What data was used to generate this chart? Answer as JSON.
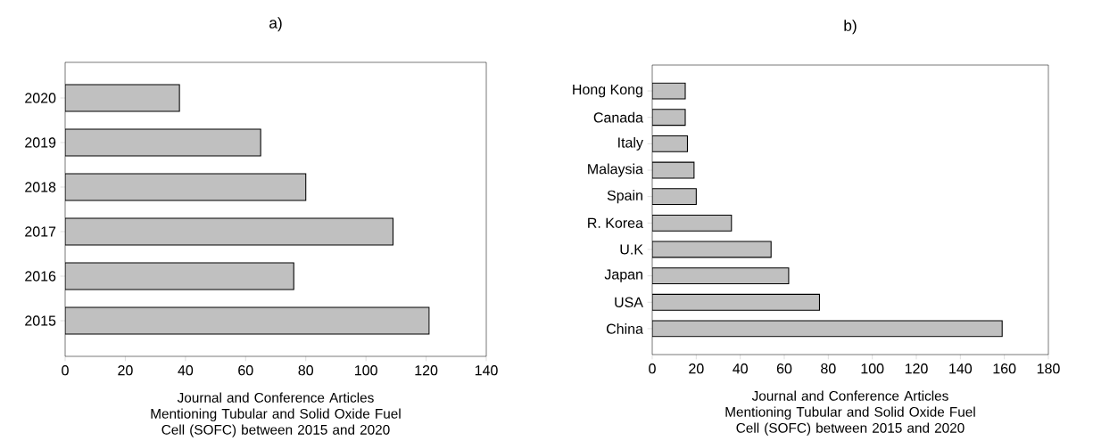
{
  "chart_data": [
    {
      "type": "bar",
      "orientation": "horizontal",
      "title": "a)",
      "xlabel": "Journal and Conference Articles Mentioning Tubular and Solid Oxide Fuel Cell (SOFC) between 2015 and 2020",
      "categories": [
        "2020",
        "2019",
        "2018",
        "2017",
        "2016",
        "2015"
      ],
      "values": [
        38,
        65,
        80,
        109,
        76,
        121
      ],
      "color": "#c0c0c0",
      "xlim": [
        0,
        140
      ],
      "xticks": [
        0,
        20,
        40,
        60,
        80,
        100,
        120,
        140
      ]
    },
    {
      "type": "bar",
      "orientation": "horizontal",
      "title": "b)",
      "xlabel": "Journal and Conference Articles Mentioning Tubular and Solid Oxide Fuel Cell (SOFC) between 2015 and 2020",
      "categories": [
        "Hong Kong",
        "Canada",
        "Italy",
        "Malaysia",
        "Spain",
        "R. Korea",
        "U.K",
        "Japan",
        "USA",
        "China"
      ],
      "values": [
        15,
        15,
        16,
        19,
        20,
        36,
        54,
        62,
        76,
        159
      ],
      "color": "#c0c0c0",
      "xlim": [
        0,
        180
      ],
      "xticks": [
        0,
        20,
        40,
        60,
        80,
        100,
        120,
        140,
        160,
        180
      ]
    }
  ]
}
